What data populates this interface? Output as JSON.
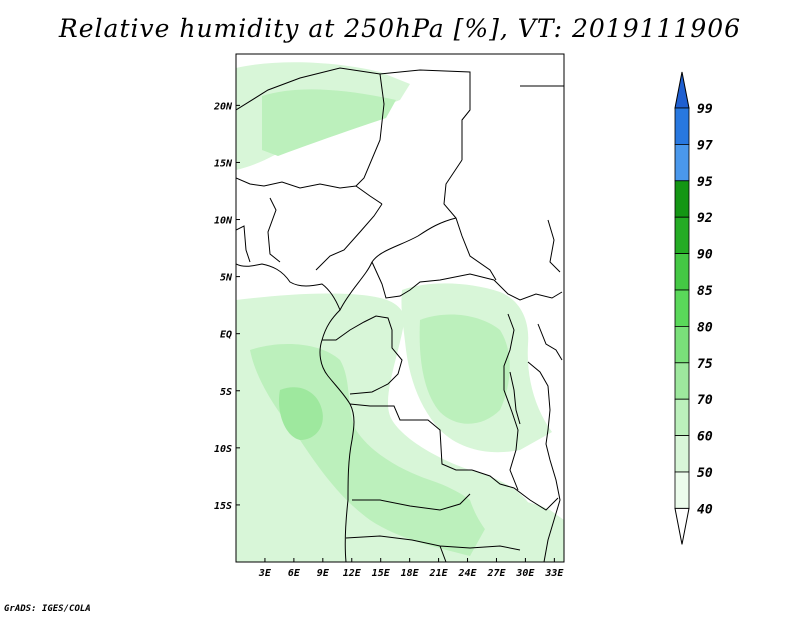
{
  "title": "Relative humidity at 250hPa [%], VT: 2019111906",
  "credit": "GrADS: IGES/COLA",
  "map": {
    "lon_range": [
      0,
      34
    ],
    "lat_range": [
      -20,
      24.5
    ],
    "x_ticks": [
      "3E",
      "6E",
      "9E",
      "12E",
      "15E",
      "18E",
      "21E",
      "24E",
      "27E",
      "30E",
      "33E"
    ],
    "x_tick_values": [
      3,
      6,
      9,
      12,
      15,
      18,
      21,
      24,
      27,
      30,
      33
    ],
    "y_ticks": [
      "20N",
      "15N",
      "10N",
      "5N",
      "EQ",
      "5S",
      "10S",
      "15S"
    ],
    "y_tick_values": [
      20,
      15,
      10,
      5,
      0,
      -5,
      -10,
      -15
    ]
  },
  "colorbar": {
    "labels": [
      "99",
      "97",
      "95",
      "92",
      "90",
      "85",
      "80",
      "75",
      "70",
      "60",
      "50",
      "40"
    ],
    "colors": [
      "#1f5fd0",
      "#2878e0",
      "#4a98ec",
      "#149614",
      "#24ac24",
      "#44c844",
      "#5ad85a",
      "#7ae07a",
      "#9ee89e",
      "#bcf0bc",
      "#d8f6d8",
      "#ecfcec"
    ],
    "shading_palette": [
      "#d8f6d8",
      "#bcf0bc",
      "#9ee89e"
    ]
  }
}
